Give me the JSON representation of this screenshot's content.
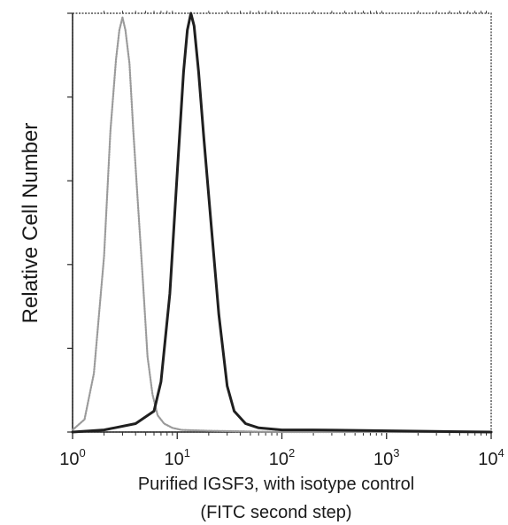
{
  "chart_data": {
    "type": "line",
    "title": "",
    "xlabel_line1": "Purified IGSF3, with isotype control",
    "xlabel_line2": "(FITC second step)",
    "ylabel": "Relative Cell Number",
    "x_scale": "log",
    "xlim": [
      1,
      10000
    ],
    "ylim": [
      0,
      100
    ],
    "x_ticks": [
      {
        "value": 1,
        "base": "10",
        "exp": "0"
      },
      {
        "value": 10,
        "base": "10",
        "exp": "1"
      },
      {
        "value": 100,
        "base": "10",
        "exp": "2"
      },
      {
        "value": 1000,
        "base": "10",
        "exp": "3"
      },
      {
        "value": 10000,
        "base": "10",
        "exp": "4"
      }
    ],
    "y_ticks": [
      0,
      20,
      40,
      60,
      80,
      100
    ],
    "grid": false,
    "legend": "none",
    "series": [
      {
        "color": "#9a9a9a",
        "style": "dotted",
        "x": [
          1.0,
          1.3,
          1.6,
          2.0,
          2.3,
          2.6,
          2.8,
          3.0,
          3.2,
          3.5,
          3.8,
          4.2,
          4.7,
          5.2,
          5.8,
          6.5,
          7.5,
          9.0,
          11,
          20,
          100,
          10000
        ],
        "y": [
          0.5,
          3,
          14,
          42,
          72,
          89,
          96,
          99,
          96,
          88,
          72,
          55,
          36,
          18,
          9,
          4,
          2,
          1,
          0.5,
          0.3,
          0,
          0
        ]
      },
      {
        "color": "#1f1f1f",
        "style": "solid",
        "x": [
          1.0,
          2.0,
          4.0,
          6.0,
          7.0,
          8.5,
          10,
          11.5,
          12.5,
          13.5,
          14.5,
          16,
          18,
          21,
          25,
          30,
          35,
          45,
          60,
          100,
          200,
          10000
        ],
        "y": [
          0,
          0.5,
          2,
          5,
          12,
          33,
          62,
          86,
          96,
          100,
          97,
          86,
          70,
          50,
          28,
          11,
          5,
          2,
          1,
          0.5,
          0.5,
          0
        ]
      }
    ]
  }
}
